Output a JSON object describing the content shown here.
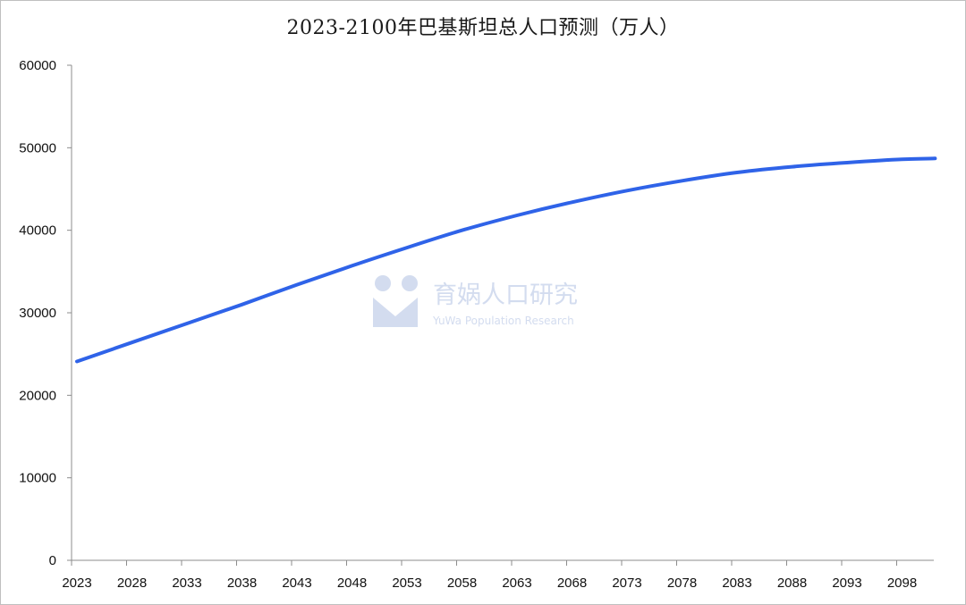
{
  "chart_data": {
    "type": "line",
    "title": "2023-2100年巴基斯坦总人口预测（万人）",
    "xlabel": "",
    "ylabel": "",
    "x_tick_labels": [
      "2023",
      "2028",
      "2033",
      "2038",
      "2043",
      "2048",
      "2053",
      "2058",
      "2063",
      "2068",
      "2073",
      "2078",
      "2083",
      "2088",
      "2093",
      "2098"
    ],
    "y_tick_labels": [
      "0",
      "10000",
      "20000",
      "30000",
      "40000",
      "50000",
      "60000"
    ],
    "ylim": [
      0,
      60000
    ],
    "xlim": [
      2023,
      2101
    ],
    "grid": false,
    "legend": "none",
    "series": [
      {
        "color": "#2f63e8",
        "x": [
          2023,
          2028,
          2033,
          2038,
          2043,
          2048,
          2053,
          2058,
          2063,
          2068,
          2073,
          2078,
          2083,
          2088,
          2093,
          2098,
          2101
        ],
        "values": [
          24100,
          26400,
          28700,
          31000,
          33400,
          35700,
          37900,
          40000,
          41800,
          43400,
          44800,
          46000,
          47000,
          47700,
          48200,
          48600,
          48700
        ]
      }
    ]
  },
  "watermark": {
    "name": "育娲人口研究",
    "subtitle": "YuWa Population Research",
    "color": "#d3dcef"
  }
}
